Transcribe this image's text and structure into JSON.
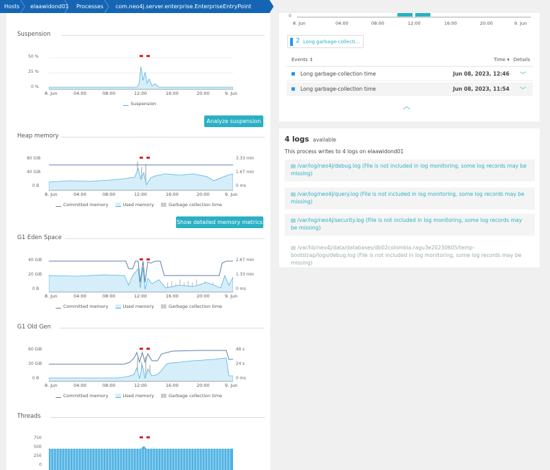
{
  "breadcrumb": [
    {
      "label": "Hosts"
    },
    {
      "label": "elaawidond01"
    },
    {
      "label": "Processes"
    },
    {
      "label": "com.neo4j.server.enterprise.EnterpriseEntryPoint"
    }
  ],
  "colors": {
    "accent": "#2ab0c4",
    "breadcrumb": "#1565b4",
    "series_fill": "#d6eefa",
    "series_line": "#4fb2e3",
    "committed": "#5a7ea6",
    "marker": "#d9232e"
  },
  "x_ticks": [
    "8. Jun",
    "04:00",
    "08:00",
    "12:00",
    "16:00",
    "20:00",
    "9. Jun"
  ],
  "suspension": {
    "title": "Suspension",
    "y_ticks": [
      "50 %",
      "25 %",
      "0 %"
    ],
    "legend": [
      "Suspension"
    ],
    "button": "Analyze suspension"
  },
  "heap": {
    "title": "Heap memory",
    "y_ticks": [
      "80 GiB",
      "40 GiB",
      "0 B"
    ],
    "y2_ticks": [
      "3.33 min",
      "1.67 min",
      "0 ms"
    ],
    "legend": [
      "Committed memory",
      "Used memory",
      "Garbage collection time"
    ],
    "button": "Show detailed memory metrics"
  },
  "eden": {
    "title": "G1 Eden Space",
    "y_ticks": [
      "40 GiB",
      "20 GiB",
      "0 B"
    ],
    "y2_ticks": [
      "2.67 min",
      "1.33 min",
      "0 ms"
    ],
    "legend": [
      "Committed memory",
      "Used memory",
      "Garbage collection time"
    ]
  },
  "oldgen": {
    "title": "G1 Old Gen",
    "y_ticks": [
      "60 GiB",
      "30 GiB",
      "0 B"
    ],
    "y2_ticks": [
      "48 s",
      "24 s",
      "0 ms"
    ],
    "legend": [
      "Committed memory",
      "Used memory",
      "Garbage collection time"
    ]
  },
  "threads": {
    "title": "Threads",
    "y_ticks": [
      "750",
      "500",
      "250",
      "0"
    ]
  },
  "gc_events": {
    "y_tick": "0",
    "chip_count": "2",
    "chip_label": "Long garbage-collecti...",
    "header_events": "Events",
    "header_time": "Time",
    "header_details": "Details",
    "rows": [
      {
        "name": "Long garbage-collection time",
        "time": "Jun 08, 2023, 12:46"
      },
      {
        "name": "Long garbage-collection time",
        "time": "Jun 08, 2023, 11:54"
      }
    ]
  },
  "logs": {
    "count": "4 logs",
    "available": "available",
    "subtitle": "This process writes to 4 logs on elaawidond01",
    "items": [
      {
        "text": "/var/log/neo4j/debug.log (File is not included in log monitoring, some log records may be missing)",
        "enabled": true
      },
      {
        "text": "/var/log/neo4j/query.log (File is not included in log monitoring, some log records may be missing)",
        "enabled": true
      },
      {
        "text": "/var/log/neo4j/security.log (File is not included in log monitoring, some log records may be missing)",
        "enabled": true
      },
      {
        "text": "/var/lib/neo4j/data/databases/db02colombia.ragu3e20230605/temp-bootstrap/logs/debug.log (File is not included in log monitoring, some log records may be missing)",
        "enabled": false
      }
    ]
  }
}
